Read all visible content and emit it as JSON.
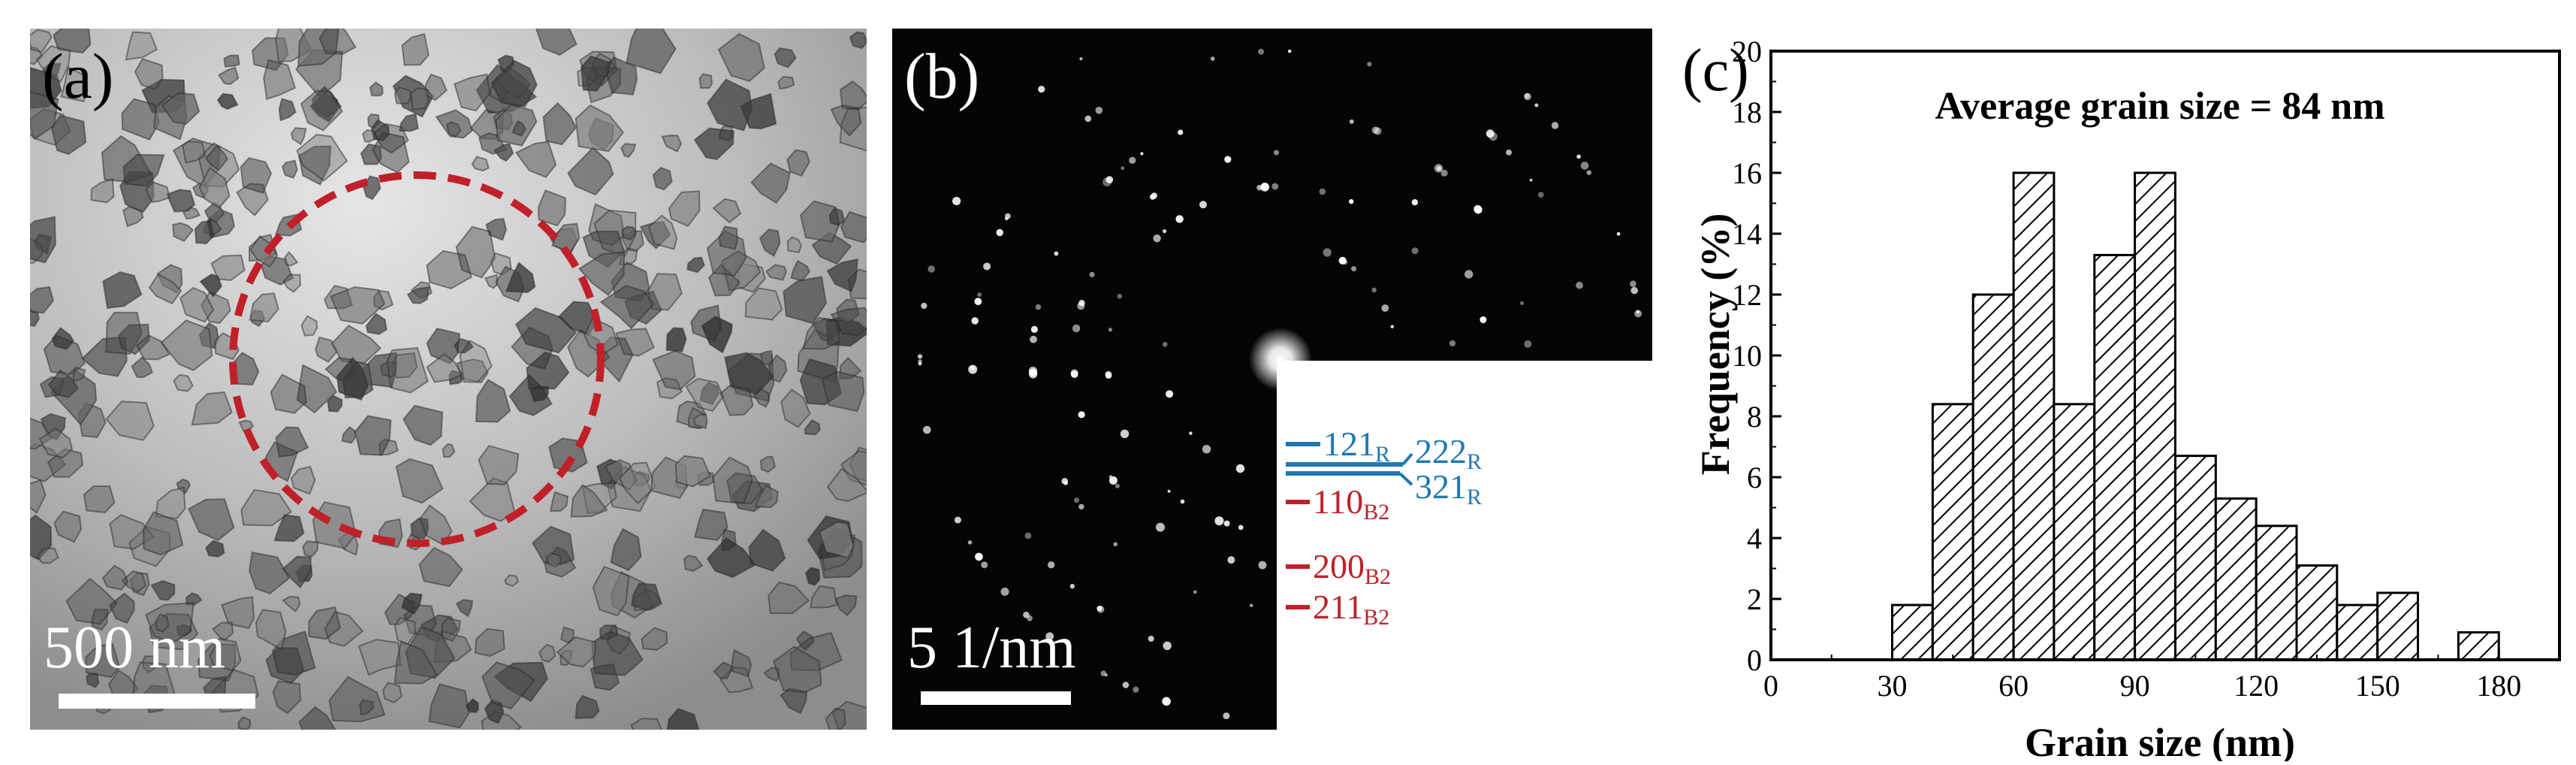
{
  "panel_a": {
    "label": "(a)",
    "scale_bar_text": "500 nm",
    "circle_color": "#c0202a"
  },
  "panel_b": {
    "label": "(b)",
    "scale_bar_text": "5 1/nm",
    "ring_labels": [
      {
        "main": "121",
        "sub": "R",
        "color": "#1f77b4"
      },
      {
        "main": "222",
        "sub": "R",
        "color": "#1f77b4"
      },
      {
        "main": "321",
        "sub": "R",
        "color": "#1f77b4"
      },
      {
        "main": "110",
        "sub": "B2",
        "color": "#c0202a"
      },
      {
        "main": "200",
        "sub": "B2",
        "color": "#c0202a"
      },
      {
        "main": "211",
        "sub": "B2",
        "color": "#c0202a"
      }
    ]
  },
  "chart_data": {
    "type": "bar",
    "panel_label": "(c)",
    "title": "Average grain size = 84 nm",
    "xlabel": "Grain size (nm)",
    "ylabel": "Frequency (%)",
    "xlim": [
      0,
      195
    ],
    "ylim": [
      0,
      20
    ],
    "xticks": [
      0,
      30,
      60,
      90,
      120,
      150,
      180
    ],
    "yticks": [
      0,
      2,
      4,
      6,
      8,
      10,
      12,
      14,
      16,
      18,
      20
    ],
    "bin_width": 10,
    "bins": [
      {
        "start": 30,
        "value": 1.8
      },
      {
        "start": 40,
        "value": 8.4
      },
      {
        "start": 50,
        "value": 12.0
      },
      {
        "start": 60,
        "value": 16.0
      },
      {
        "start": 70,
        "value": 8.4
      },
      {
        "start": 80,
        "value": 13.3
      },
      {
        "start": 90,
        "value": 16.0
      },
      {
        "start": 100,
        "value": 6.7
      },
      {
        "start": 110,
        "value": 5.3
      },
      {
        "start": 120,
        "value": 4.4
      },
      {
        "start": 130,
        "value": 3.1
      },
      {
        "start": 140,
        "value": 1.8
      },
      {
        "start": 150,
        "value": 2.2
      },
      {
        "start": 170,
        "value": 0.9
      }
    ],
    "fill_pattern": "diagonal-hatch"
  }
}
